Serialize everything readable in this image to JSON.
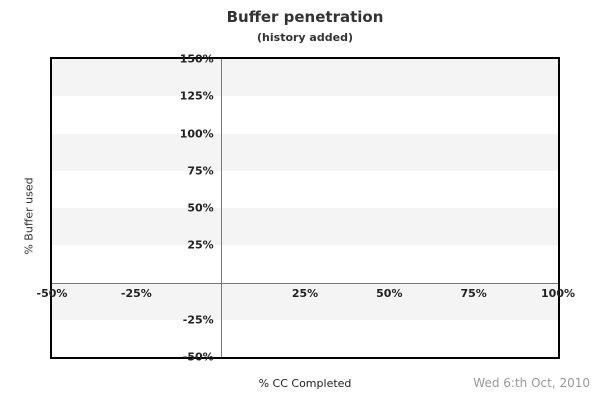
{
  "chart_data": {
    "type": "line",
    "title": "Buffer penetration",
    "subtitle": "(history added)",
    "xlabel": "% CC Completed",
    "ylabel": "% Buffer used",
    "xlim": [
      -50,
      100
    ],
    "ylim": [
      -50,
      150
    ],
    "x_tick_values": [
      -50,
      -25,
      25,
      50,
      75,
      100
    ],
    "y_tick_values": [
      150,
      125,
      100,
      75,
      50,
      25,
      -25,
      -50
    ],
    "tick_suffix": "%",
    "grid": "horizontal-bands",
    "bands": {
      "step": 25,
      "colors": [
        "#f4f4f4",
        "#ffffff"
      ]
    },
    "axis_cross": {
      "x": 0,
      "y": 0
    },
    "series": [],
    "footer_date": "Wed 6:th Oct, 2010"
  },
  "colors": {
    "band_gray": "#f4f4f4",
    "plot_border": "#000000",
    "axis_line": "#777777",
    "tick_label": "#222222",
    "title_text": "#333333",
    "date_text": "#9a9a9a"
  }
}
